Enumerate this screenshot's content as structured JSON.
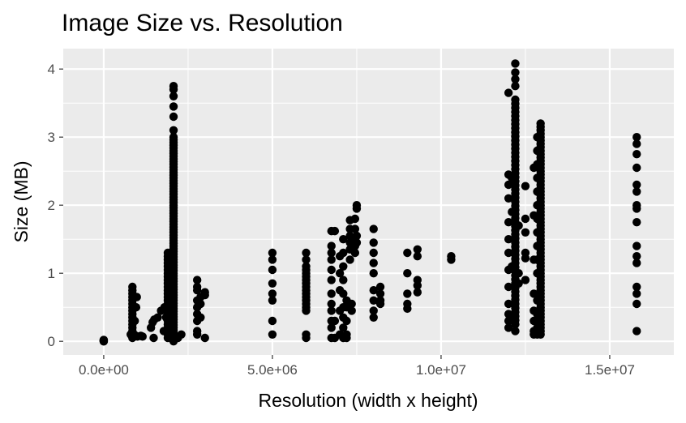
{
  "chart_data": {
    "type": "scatter",
    "title": "Image Size vs. Resolution",
    "xlabel": "Resolution (width x height)",
    "ylabel": "Size (MB)",
    "xlim": [
      -1200000,
      16900000
    ],
    "ylim": [
      -0.2,
      4.3
    ],
    "x_ticks": [
      {
        "value": 0,
        "label": "0.0e+00"
      },
      {
        "value": 5000000,
        "label": "5.0e+06"
      },
      {
        "value": 10000000,
        "label": "1.0e+07"
      },
      {
        "value": 15000000,
        "label": "1.5e+07"
      }
    ],
    "y_ticks": [
      {
        "value": 0,
        "label": "0"
      },
      {
        "value": 1,
        "label": "1"
      },
      {
        "value": 2,
        "label": "2"
      },
      {
        "value": 3,
        "label": "3"
      },
      {
        "value": 4,
        "label": "4"
      }
    ],
    "grid": true,
    "legend": "none",
    "colors": {
      "panel": "#ebebeb",
      "grid": "#ffffff",
      "point": "#000000"
    },
    "column_ranges": [
      {
        "x": 0,
        "ymin": 0.0,
        "ymax": 0.02,
        "step": 0.01
      },
      {
        "x": 850000,
        "ymin": 0.05,
        "ymax": 0.8,
        "step": 0.05
      },
      {
        "x": 1900000,
        "ymin": 0.05,
        "ymax": 1.3,
        "step": 0.05
      },
      {
        "x": 2070000,
        "ymin": 0.0,
        "ymax": 3.0,
        "step": 0.04
      },
      {
        "x": 12200000,
        "ymin": 0.25,
        "ymax": 3.6,
        "step": 0.06
      },
      {
        "x": 12950000,
        "ymin": 0.15,
        "ymax": 3.15,
        "step": 0.05
      }
    ],
    "points": [
      [
        0,
        0.0
      ],
      [
        0,
        0.01
      ],
      [
        0,
        0.02
      ],
      [
        800000,
        0.1
      ],
      [
        900000,
        0.1
      ],
      [
        950000,
        0.08
      ],
      [
        1000000,
        0.07
      ],
      [
        1100000,
        0.08
      ],
      [
        1150000,
        0.07
      ],
      [
        920000,
        0.3
      ],
      [
        960000,
        0.5
      ],
      [
        980000,
        0.65
      ],
      [
        1400000,
        0.2
      ],
      [
        1450000,
        0.28
      ],
      [
        1500000,
        0.32
      ],
      [
        1600000,
        0.35
      ],
      [
        1480000,
        0.05
      ],
      [
        1700000,
        0.45
      ],
      [
        1800000,
        0.5
      ],
      [
        1850000,
        0.35
      ],
      [
        1780000,
        0.15
      ],
      [
        2070000,
        3.1
      ],
      [
        2070000,
        3.3
      ],
      [
        2070000,
        3.45
      ],
      [
        2070000,
        3.6
      ],
      [
        2070000,
        3.7
      ],
      [
        2070000,
        3.75
      ],
      [
        2200000,
        0.05
      ],
      [
        2300000,
        0.1
      ],
      [
        2770000,
        0.9
      ],
      [
        2770000,
        0.8
      ],
      [
        2770000,
        0.75
      ],
      [
        2770000,
        0.6
      ],
      [
        2770000,
        0.5
      ],
      [
        2770000,
        0.4
      ],
      [
        2770000,
        0.3
      ],
      [
        2770000,
        0.15
      ],
      [
        2770000,
        0.1
      ],
      [
        2870000,
        0.35
      ],
      [
        2870000,
        0.55
      ],
      [
        2870000,
        0.65
      ],
      [
        3000000,
        0.05
      ],
      [
        3000000,
        0.68
      ],
      [
        3000000,
        0.72
      ],
      [
        5000000,
        1.3
      ],
      [
        5000000,
        1.2
      ],
      [
        5000000,
        1.05
      ],
      [
        5000000,
        0.85
      ],
      [
        5000000,
        0.7
      ],
      [
        5000000,
        0.6
      ],
      [
        5000000,
        0.3
      ],
      [
        5000000,
        0.1
      ],
      [
        6000000,
        1.3
      ],
      [
        6000000,
        1.2
      ],
      [
        6000000,
        1.1
      ],
      [
        6000000,
        1.05
      ],
      [
        6000000,
        1.0
      ],
      [
        6000000,
        0.95
      ],
      [
        6000000,
        0.9
      ],
      [
        6000000,
        0.85
      ],
      [
        6000000,
        0.8
      ],
      [
        6000000,
        0.75
      ],
      [
        6000000,
        0.7
      ],
      [
        6000000,
        0.65
      ],
      [
        6000000,
        0.6
      ],
      [
        6000000,
        0.55
      ],
      [
        6000000,
        0.5
      ],
      [
        6000000,
        0.45
      ],
      [
        6000000,
        0.1
      ],
      [
        6000000,
        0.05
      ],
      [
        6750000,
        1.62
      ],
      [
        6750000,
        1.4
      ],
      [
        6750000,
        1.3
      ],
      [
        6750000,
        1.2
      ],
      [
        6750000,
        1.05
      ],
      [
        6750000,
        0.9
      ],
      [
        6750000,
        0.7
      ],
      [
        6750000,
        0.55
      ],
      [
        6750000,
        0.45
      ],
      [
        6750000,
        0.3
      ],
      [
        6750000,
        0.2
      ],
      [
        6750000,
        0.05
      ],
      [
        6850000,
        1.62
      ],
      [
        6850000,
        0.3
      ],
      [
        6850000,
        0.05
      ],
      [
        7000000,
        1.25
      ],
      [
        7000000,
        1.0
      ],
      [
        7000000,
        0.75
      ],
      [
        7000000,
        0.45
      ],
      [
        7000000,
        0.1
      ],
      [
        7100000,
        1.5
      ],
      [
        7100000,
        1.3
      ],
      [
        7100000,
        1.1
      ],
      [
        7100000,
        0.9
      ],
      [
        7100000,
        0.7
      ],
      [
        7100000,
        0.5
      ],
      [
        7100000,
        0.35
      ],
      [
        7100000,
        0.2
      ],
      [
        7100000,
        0.05
      ],
      [
        7200000,
        0.6
      ],
      [
        7200000,
        0.5
      ],
      [
        7200000,
        0.3
      ],
      [
        7200000,
        0.1
      ],
      [
        7200000,
        0.05
      ],
      [
        7300000,
        1.78
      ],
      [
        7300000,
        1.65
      ],
      [
        7300000,
        1.55
      ],
      [
        7300000,
        1.45
      ],
      [
        7300000,
        1.35
      ],
      [
        7300000,
        1.2
      ],
      [
        7350000,
        0.55
      ],
      [
        7350000,
        0.45
      ],
      [
        7450000,
        1.8
      ],
      [
        7450000,
        1.65
      ],
      [
        7450000,
        1.5
      ],
      [
        7450000,
        1.4
      ],
      [
        7450000,
        1.3
      ],
      [
        7500000,
        2.0
      ],
      [
        7500000,
        1.95
      ],
      [
        7500000,
        1.55
      ],
      [
        7500000,
        1.45
      ],
      [
        8000000,
        1.65
      ],
      [
        8000000,
        1.45
      ],
      [
        8000000,
        1.3
      ],
      [
        8000000,
        1.15
      ],
      [
        8000000,
        1.0
      ],
      [
        8000000,
        0.75
      ],
      [
        8000000,
        0.6
      ],
      [
        8000000,
        0.45
      ],
      [
        8000000,
        0.35
      ],
      [
        8200000,
        0.8
      ],
      [
        8200000,
        0.7
      ],
      [
        8200000,
        0.6
      ],
      [
        8200000,
        0.55
      ],
      [
        9000000,
        1.3
      ],
      [
        9000000,
        1.0
      ],
      [
        9000000,
        0.7
      ],
      [
        9000000,
        0.55
      ],
      [
        9000000,
        0.48
      ],
      [
        9300000,
        1.35
      ],
      [
        9300000,
        1.25
      ],
      [
        9300000,
        0.9
      ],
      [
        9300000,
        0.82
      ],
      [
        9300000,
        0.72
      ],
      [
        10300000,
        1.25
      ],
      [
        10300000,
        1.2
      ],
      [
        12000000,
        3.65
      ],
      [
        12000000,
        2.45
      ],
      [
        12000000,
        2.3
      ],
      [
        12000000,
        2.1
      ],
      [
        12000000,
        1.75
      ],
      [
        12000000,
        1.5
      ],
      [
        12000000,
        1.3
      ],
      [
        12000000,
        1.05
      ],
      [
        12000000,
        0.8
      ],
      [
        12000000,
        0.55
      ],
      [
        12000000,
        0.4
      ],
      [
        12000000,
        0.3
      ],
      [
        12000000,
        0.2
      ],
      [
        12100000,
        2.4
      ],
      [
        12100000,
        1.9
      ],
      [
        12100000,
        1.1
      ],
      [
        12100000,
        0.35
      ],
      [
        12200000,
        4.08
      ],
      [
        12200000,
        3.95
      ],
      [
        12200000,
        3.85
      ],
      [
        12200000,
        3.75
      ],
      [
        12200000,
        0.15
      ],
      [
        12300000,
        1.7
      ],
      [
        12300000,
        1.0
      ],
      [
        12300000,
        0.85
      ],
      [
        12500000,
        2.28
      ],
      [
        12500000,
        1.8
      ],
      [
        12500000,
        1.6
      ],
      [
        12500000,
        1.3
      ],
      [
        12500000,
        1.22
      ],
      [
        12500000,
        0.9
      ],
      [
        12750000,
        2.55
      ],
      [
        12750000,
        1.85
      ],
      [
        12750000,
        1.2
      ],
      [
        12750000,
        0.7
      ],
      [
        12750000,
        0.45
      ],
      [
        12750000,
        0.3
      ],
      [
        12750000,
        0.15
      ],
      [
        12750000,
        0.1
      ],
      [
        12850000,
        3.0
      ],
      [
        12850000,
        2.8
      ],
      [
        12850000,
        2.6
      ],
      [
        12850000,
        2.4
      ],
      [
        12850000,
        2.2
      ],
      [
        12850000,
        2.0
      ],
      [
        12850000,
        1.8
      ],
      [
        12850000,
        1.6
      ],
      [
        12850000,
        1.4
      ],
      [
        12850000,
        1.2
      ],
      [
        12850000,
        1.0
      ],
      [
        12850000,
        0.6
      ],
      [
        12850000,
        0.4
      ],
      [
        12850000,
        0.2
      ],
      [
        12850000,
        0.1
      ],
      [
        12950000,
        3.2
      ],
      [
        12950000,
        0.1
      ],
      [
        15800000,
        3.0
      ],
      [
        15800000,
        2.9
      ],
      [
        15800000,
        2.75
      ],
      [
        15800000,
        2.55
      ],
      [
        15800000,
        2.3
      ],
      [
        15800000,
        2.2
      ],
      [
        15800000,
        2.0
      ],
      [
        15800000,
        1.95
      ],
      [
        15800000,
        1.75
      ],
      [
        15800000,
        1.4
      ],
      [
        15800000,
        1.25
      ],
      [
        15800000,
        1.15
      ],
      [
        15800000,
        0.8
      ],
      [
        15800000,
        0.7
      ],
      [
        15800000,
        0.55
      ],
      [
        15800000,
        0.15
      ]
    ]
  }
}
